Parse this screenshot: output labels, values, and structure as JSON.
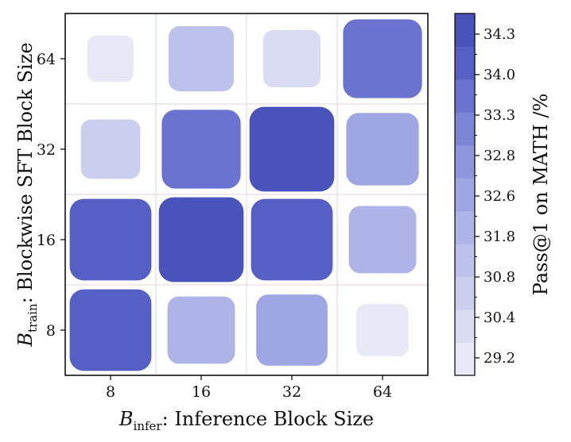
{
  "chart_data": {
    "type": "heatmap",
    "title": "",
    "xlabel": {
      "symbol": "B",
      "subscript": "infer",
      "text": ": Inference Block Size"
    },
    "ylabel": {
      "symbol": "B",
      "subscript": "train",
      "text": ": Blockwise SFT Block Size"
    },
    "x_categories": [
      "8",
      "16",
      "32",
      "64"
    ],
    "y_categories": [
      "8",
      "16",
      "32",
      "64"
    ],
    "cells": [
      {
        "train": "64",
        "infer": "8",
        "value": 29.3
      },
      {
        "train": "64",
        "infer": "16",
        "value": 30.9
      },
      {
        "train": "64",
        "infer": "32",
        "value": 30.0
      },
      {
        "train": "64",
        "infer": "64",
        "value": 33.2
      },
      {
        "train": "32",
        "infer": "8",
        "value": 30.2
      },
      {
        "train": "32",
        "infer": "16",
        "value": 33.2
      },
      {
        "train": "32",
        "infer": "32",
        "value": 34.5
      },
      {
        "train": "32",
        "infer": "64",
        "value": 32.0
      },
      {
        "train": "16",
        "infer": "8",
        "value": 33.8
      },
      {
        "train": "16",
        "infer": "16",
        "value": 34.5
      },
      {
        "train": "16",
        "infer": "32",
        "value": 33.8
      },
      {
        "train": "16",
        "infer": "64",
        "value": 31.2
      },
      {
        "train": "8",
        "infer": "8",
        "value": 33.8
      },
      {
        "train": "8",
        "infer": "16",
        "value": 31.2
      },
      {
        "train": "8",
        "infer": "32",
        "value": 31.8
      },
      {
        "train": "8",
        "infer": "64",
        "value": 29.6
      }
    ],
    "colorbar": {
      "label": "Pass@1 on MATH /%",
      "ticks": [
        "29.2",
        "30.4",
        "30.8",
        "31.8",
        "32.6",
        "32.8",
        "33.3",
        "34.0",
        "34.3"
      ],
      "levels": [
        29.2,
        30.4,
        30.8,
        31.8,
        32.6,
        32.8,
        33.3,
        34.0,
        34.3,
        34.6
      ],
      "colors": [
        "#e8e9f7",
        "#d9dcf3",
        "#cbcfef",
        "#bcc2ec",
        "#aeb4e8",
        "#9ea6e3",
        "#8e97dd",
        "#7c86d7",
        "#6a74d0",
        "#5660c4",
        "#4a52bb"
      ]
    }
  }
}
